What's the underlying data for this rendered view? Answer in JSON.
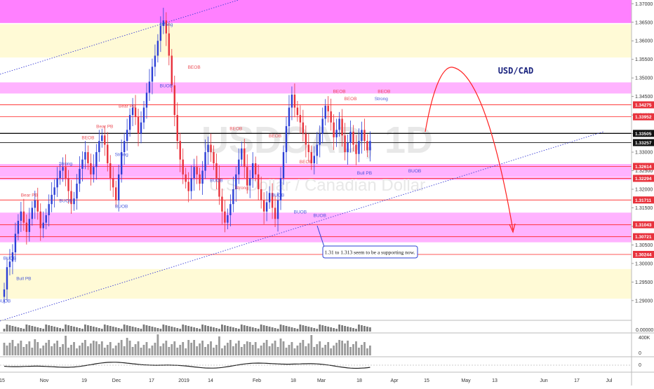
{
  "chart_data": {
    "type": "candlestick",
    "title": "USD/CAD",
    "watermark": "USDCAD, 1D",
    "watermark_sub": "U.S. Dollar / Canadian Dollar",
    "annotation": "1.31 to 1.313 seem to be a supporting now.",
    "colors": {
      "up": "#2b3fd6",
      "down": "#e8323c",
      "magenta_zone": "#ffb3ff",
      "magenta_strong": "#ff80ff",
      "yellow_zone": "#fffad6",
      "trendline": "#3b3fd6",
      "arrow": "#ff2020",
      "hline": "#ff2020"
    },
    "y_axis": {
      "min": 1.286,
      "max": 1.371,
      "ticks": [
        "1.37000",
        "1.36500",
        "1.36000",
        "1.35500",
        "1.35000",
        "1.34500",
        "1.34000",
        "1.33500",
        "1.33000",
        "1.32500",
        "1.32000",
        "1.31500",
        "1.31000",
        "1.30500",
        "1.30000",
        "1.29500",
        "1.29000"
      ]
    },
    "price_labels": [
      {
        "text": "1.34275",
        "value": 1.34275,
        "color": "#e8323c"
      },
      {
        "text": "1.33952",
        "value": 1.33952,
        "color": "#e8323c"
      },
      {
        "text": "1.33505",
        "value": 1.33505,
        "color": "#111111"
      },
      {
        "text": "1.33257",
        "value": 1.33257,
        "color": "#111111"
      },
      {
        "text": "1.32614",
        "value": 1.32614,
        "color": "#e8323c"
      },
      {
        "text": "1.32294",
        "value": 1.32294,
        "color": "#e8323c"
      },
      {
        "text": "1.31711",
        "value": 1.31711,
        "color": "#e8323c"
      },
      {
        "text": "1.31043",
        "value": 1.31043,
        "color": "#e8323c"
      },
      {
        "text": "1.30721",
        "value": 1.30721,
        "color": "#e8323c"
      },
      {
        "text": "1.30244",
        "value": 1.30244,
        "color": "#e8323c"
      }
    ],
    "x_labels": [
      "15",
      "Nov",
      "19",
      "Dec",
      "17",
      "2019",
      "14",
      "Feb",
      "18",
      "Mar",
      "18",
      "Apr",
      "15",
      "May",
      "13",
      "Jun",
      "17",
      "Jul"
    ],
    "zones": [
      {
        "from": 1.3648,
        "to": 1.371,
        "kind": "magenta_strong"
      },
      {
        "from": 1.3555,
        "to": 1.3645,
        "kind": "yellow"
      },
      {
        "from": 1.3458,
        "to": 1.3488,
        "kind": "magenta"
      },
      {
        "from": 1.3233,
        "to": 1.3268,
        "kind": "magenta"
      },
      {
        "from": 1.3225,
        "to": 1.3232,
        "kind": "magenta"
      },
      {
        "from": 1.3057,
        "to": 1.3137,
        "kind": "magenta"
      },
      {
        "from": 1.2905,
        "to": 1.2985,
        "kind": "yellow"
      }
    ],
    "series_close": [
      1.293,
      1.299,
      1.3005,
      1.303,
      1.308,
      1.3115,
      1.314,
      1.311,
      1.3085,
      1.312,
      1.315,
      1.317,
      1.314,
      1.3095,
      1.311,
      1.313,
      1.316,
      1.3185,
      1.3205,
      1.323,
      1.325,
      1.326,
      1.323,
      1.3195,
      1.316,
      1.3175,
      1.3215,
      1.3255,
      1.328,
      1.33,
      1.327,
      1.324,
      1.326,
      1.33,
      1.333,
      1.3345,
      1.332,
      1.327,
      1.323,
      1.3205,
      1.317,
      1.324,
      1.33,
      1.333,
      1.336,
      1.34,
      1.342,
      1.3395,
      1.335,
      1.338,
      1.342,
      1.346,
      1.349,
      1.353,
      1.356,
      1.36,
      1.364,
      1.3655,
      1.362,
      1.356,
      1.348,
      1.34,
      1.333,
      1.328,
      1.324,
      1.322,
      1.3195,
      1.323,
      1.326,
      1.324,
      1.3215,
      1.325,
      1.33,
      1.332,
      1.33,
      1.327,
      1.323,
      1.318,
      1.314,
      1.311,
      1.313,
      1.316,
      1.32,
      1.324,
      1.328,
      1.331,
      1.326,
      1.321,
      1.323,
      1.327,
      1.324,
      1.32,
      1.317,
      1.314,
      1.3165,
      1.319,
      1.315,
      1.312,
      1.317,
      1.323,
      1.33,
      1.337,
      1.342,
      1.3455,
      1.342,
      1.34,
      1.338,
      1.335,
      1.332,
      1.33,
      1.327,
      1.329,
      1.332,
      1.335,
      1.339,
      1.3425,
      1.341,
      1.338,
      1.334,
      1.336,
      1.339,
      1.3345,
      1.33,
      1.3325,
      1.3355,
      1.332,
      1.3295,
      1.333,
      1.336,
      1.333,
      1.3305,
      1.333
    ],
    "pattern_labels": [
      {
        "text": "Bear PB",
        "i": 9,
        "value": 1.318,
        "color": "#e8323c"
      },
      {
        "text": "Bull PB",
        "i": 7,
        "value": 1.2955,
        "color": "#2b3fd6"
      },
      {
        "text": "BUOB",
        "i": 2,
        "value": 1.301,
        "color": "#2b3fd6"
      },
      {
        "text": "BUOB",
        "i": 0,
        "value": 1.2895,
        "color": "#2b3fd6"
      },
      {
        "text": "BUOB",
        "i": 22,
        "value": 1.3165,
        "color": "#2b3fd6"
      },
      {
        "text": "Strong",
        "i": 22,
        "value": 1.3265,
        "color": "#2b3fd6"
      },
      {
        "text": "BEOB",
        "i": 30,
        "value": 1.3335,
        "color": "#e8323c"
      },
      {
        "text": "Bear PB",
        "i": 36,
        "value": 1.3365,
        "color": "#e8323c"
      },
      {
        "text": "Bear PB",
        "i": 44,
        "value": 1.342,
        "color": "#e8323c"
      },
      {
        "text": "BUOB",
        "i": 42,
        "value": 1.315,
        "color": "#2b3fd6"
      },
      {
        "text": "Strong",
        "i": 42,
        "value": 1.329,
        "color": "#2b3fd6"
      },
      {
        "text": "BUOB",
        "i": 58,
        "value": 1.3475,
        "color": "#2b3fd6"
      },
      {
        "text": "Strong",
        "i": 58,
        "value": 1.364,
        "color": "#2b3fd6"
      },
      {
        "text": "BEOB",
        "i": 68,
        "value": 1.3525,
        "color": "#e8323c"
      },
      {
        "text": "BUOB",
        "i": 76,
        "value": 1.322,
        "color": "#2b3fd6"
      },
      {
        "text": "BEOB",
        "i": 83,
        "value": 1.336,
        "color": "#e8323c"
      },
      {
        "text": "Strong",
        "i": 85,
        "value": 1.32,
        "color": "#e8323c"
      },
      {
        "text": "BEOB",
        "i": 97,
        "value": 1.334,
        "color": "#e8323c"
      },
      {
        "text": "BUOB",
        "i": 98,
        "value": 1.318,
        "color": "#2b3fd6"
      },
      {
        "text": "BEOB",
        "i": 108,
        "value": 1.327,
        "color": "#e8323c"
      },
      {
        "text": "BUOB",
        "i": 106,
        "value": 1.3135,
        "color": "#2b3fd6"
      },
      {
        "text": "BUOB",
        "i": 113,
        "value": 1.3125,
        "color": "#2b3fd6"
      },
      {
        "text": "BEOB",
        "i": 120,
        "value": 1.346,
        "color": "#e8323c"
      },
      {
        "text": "BEOB",
        "i": 124,
        "value": 1.344,
        "color": "#e8323c"
      },
      {
        "text": "Bull PB",
        "i": 129,
        "value": 1.324,
        "color": "#2b3fd6"
      },
      {
        "text": "BEOB",
        "i": 136,
        "value": 1.346,
        "color": "#e8323c"
      },
      {
        "text": "Strong",
        "i": 135,
        "value": 1.344,
        "color": "#2b3fd6"
      },
      {
        "text": "BUOB",
        "i": 147,
        "value": 1.3245,
        "color": "#2b3fd6"
      }
    ],
    "volume_axis": {
      "top_label": "0.00000",
      "mid_label": "400K",
      "low_label": "0",
      "osc_label": "0"
    }
  }
}
